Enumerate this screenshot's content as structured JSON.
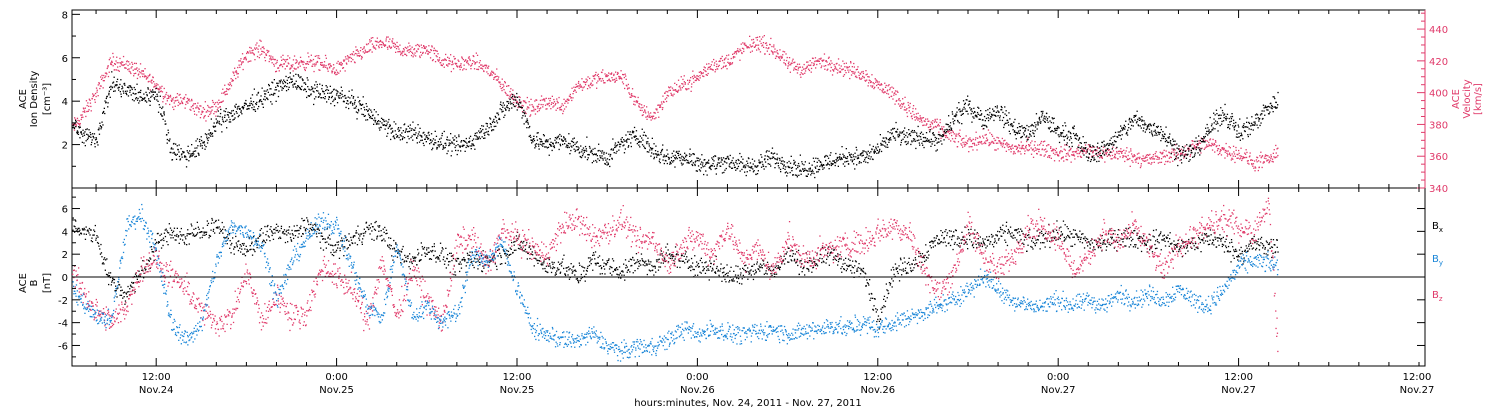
{
  "colors": {
    "black": "#000000",
    "velocity": "#e03a6a",
    "by": "#1a86d8",
    "bz": "#e03a6a"
  },
  "xaxis": {
    "title": "hours:minutes, Nov. 24, 2011 - Nov. 27, 2011",
    "range_hours": [
      6.4,
      96.4
    ],
    "ticks": [
      {
        "h": 12,
        "time": "12:00",
        "date": "Nov.24"
      },
      {
        "h": 24,
        "time": "0:00",
        "date": "Nov.25"
      },
      {
        "h": 36,
        "time": "12:00",
        "date": "Nov.25"
      },
      {
        "h": 48,
        "time": "0:00",
        "date": "Nov.26"
      },
      {
        "h": 60,
        "time": "12:00",
        "date": "Nov.26"
      },
      {
        "h": 72,
        "time": "0:00",
        "date": "Nov.27"
      },
      {
        "h": 84,
        "time": "12:00",
        "date": "Nov.27"
      }
    ]
  },
  "chart_data": [
    {
      "type": "scatter",
      "panel": "top",
      "ylabel_line1": "ACE",
      "ylabel_line2": "Ion Density",
      "ylabel_units": "[cm⁻³]",
      "ylim": [
        0,
        8.2
      ],
      "yticks": [
        2,
        4,
        6,
        8
      ],
      "y2label_line1": "ACE",
      "y2label_line2": "Velocity",
      "y2label_units": "[km/s]",
      "y2lim": [
        340,
        452
      ],
      "y2ticks": [
        340,
        360,
        380,
        400,
        420,
        440
      ],
      "series": [
        {
          "key": "density",
          "x": [
            6.4,
            7.0,
            8.0,
            9.0,
            10.0,
            11.0,
            12.0,
            13.0,
            14.0,
            15.0,
            16.0,
            17.0,
            18.0,
            19.0,
            20.0,
            21.0,
            22.0,
            23.0,
            24.0,
            25.0,
            26.0,
            27.0,
            28.0,
            29.0,
            30.0,
            31.0,
            32.0,
            33.0,
            34.0,
            35.0,
            36.0,
            37.0,
            38.0,
            39.0,
            40.0,
            41.0,
            42.0,
            43.0,
            44.0,
            45.0,
            46.0,
            47.0,
            48.0,
            49.0,
            50.0,
            51.0,
            52.0,
            53.0,
            54.0,
            55.0,
            56.0,
            57.0,
            58.0,
            59.0,
            60.0,
            61.0,
            62.0,
            63.0,
            64.0,
            65.0,
            66.0,
            67.0,
            68.0,
            69.0,
            70.0,
            71.0,
            72.0,
            73.0,
            74.0,
            75.0,
            76.0,
            77.0,
            78.0,
            79.0,
            80.0,
            81.0,
            82.0,
            83.0,
            84.0,
            85.0,
            86.0,
            86.6
          ],
          "y": [
            3.2,
            2.4,
            2.3,
            4.8,
            4.5,
            4.2,
            4.4,
            1.8,
            1.5,
            2.0,
            3.0,
            3.5,
            3.8,
            4.2,
            4.6,
            5.0,
            4.6,
            4.4,
            4.3,
            4.0,
            3.5,
            3.0,
            2.5,
            2.6,
            2.3,
            2.1,
            1.9,
            2.2,
            2.8,
            3.6,
            4.2,
            2.3,
            2.0,
            2.2,
            1.9,
            1.6,
            1.4,
            2.1,
            2.5,
            1.8,
            1.4,
            1.5,
            1.2,
            1.1,
            1.3,
            1.0,
            1.1,
            1.4,
            1.1,
            0.9,
            1.1,
            1.3,
            1.5,
            1.4,
            1.8,
            2.5,
            2.3,
            2.4,
            2.1,
            3.2,
            3.8,
            3.2,
            3.6,
            2.8,
            2.5,
            3.3,
            2.6,
            2.4,
            1.6,
            1.8,
            2.4,
            3.2,
            2.8,
            2.6,
            1.6,
            1.7,
            2.7,
            3.5,
            2.6,
            3.0,
            3.8,
            4.0
          ],
          "spread": 0.45
        },
        {
          "key": "velocity",
          "x": [
            6.4,
            7.0,
            8.0,
            9.0,
            10.0,
            11.0,
            12.0,
            13.0,
            14.0,
            15.0,
            16.0,
            17.0,
            18.0,
            19.0,
            20.0,
            21.0,
            22.0,
            23.0,
            24.0,
            25.0,
            26.0,
            27.0,
            28.0,
            29.0,
            30.0,
            31.0,
            32.0,
            33.0,
            34.0,
            35.0,
            36.0,
            37.0,
            38.0,
            39.0,
            40.0,
            41.0,
            42.0,
            43.0,
            44.0,
            45.0,
            46.0,
            47.0,
            48.0,
            49.0,
            50.0,
            51.0,
            52.0,
            53.0,
            54.0,
            55.0,
            56.0,
            57.0,
            58.0,
            59.0,
            60.0,
            61.0,
            62.0,
            63.0,
            64.0,
            65.0,
            66.0,
            67.0,
            68.0,
            69.0,
            70.0,
            71.0,
            72.0,
            73.0,
            74.0,
            75.0,
            76.0,
            77.0,
            78.0,
            79.0,
            80.0,
            81.0,
            82.0,
            83.0,
            84.0,
            85.0,
            86.0,
            86.6
          ],
          "y": [
            378,
            385,
            400,
            420,
            418,
            412,
            405,
            395,
            395,
            388,
            392,
            408,
            425,
            428,
            418,
            418,
            420,
            418,
            415,
            422,
            428,
            432,
            428,
            426,
            428,
            420,
            418,
            420,
            415,
            405,
            395,
            390,
            395,
            392,
            405,
            408,
            410,
            410,
            392,
            385,
            400,
            405,
            410,
            418,
            420,
            428,
            432,
            428,
            418,
            415,
            420,
            418,
            415,
            412,
            405,
            400,
            390,
            382,
            378,
            372,
            368,
            372,
            368,
            365,
            366,
            365,
            362,
            362,
            364,
            362,
            362,
            360,
            358,
            360,
            362,
            366,
            368,
            364,
            362,
            356,
            358,
            362
          ],
          "spread": 5
        }
      ]
    },
    {
      "type": "scatter",
      "panel": "bottom",
      "ylabel_line1": "ACE",
      "ylabel_line2": "B",
      "ylabel_units": "[nT]",
      "ylim": [
        -7.8,
        7.8
      ],
      "yticks": [
        -6,
        -4,
        -2,
        0,
        2,
        4,
        6
      ],
      "series": [
        {
          "key": "bx",
          "label": "B",
          "sub": "x",
          "x": [
            6.4,
            7.0,
            8.0,
            9.0,
            10.0,
            11.0,
            12.0,
            13.0,
            14.0,
            15.0,
            16.0,
            17.0,
            18.0,
            19.0,
            20.0,
            21.0,
            22.0,
            23.0,
            24.0,
            25.0,
            26.0,
            27.0,
            28.0,
            29.0,
            30.0,
            31.0,
            32.0,
            33.0,
            34.0,
            35.0,
            36.0,
            37.0,
            38.0,
            39.0,
            40.0,
            41.0,
            42.0,
            43.0,
            44.0,
            45.0,
            46.0,
            47.0,
            48.0,
            49.0,
            50.0,
            51.0,
            52.0,
            53.0,
            54.0,
            55.0,
            56.0,
            57.0,
            58.0,
            59.0,
            60.0,
            61.0,
            62.0,
            63.0,
            64.0,
            65.0,
            66.0,
            67.0,
            68.0,
            69.0,
            70.0,
            71.0,
            72.0,
            73.0,
            74.0,
            75.0,
            76.0,
            77.0,
            78.0,
            79.0,
            80.0,
            81.0,
            82.0,
            83.0,
            84.0,
            85.0,
            86.0,
            86.6
          ],
          "y": [
            4.5,
            4.2,
            3.5,
            -0.5,
            -1.5,
            0.5,
            3.0,
            4.0,
            3.5,
            4.2,
            4.5,
            3.0,
            2.5,
            3.5,
            4.2,
            3.5,
            4.8,
            3.5,
            2.5,
            3.5,
            4.2,
            4.0,
            2.0,
            1.5,
            2.5,
            2.0,
            1.0,
            1.5,
            1.5,
            2.0,
            3.0,
            2.0,
            1.0,
            1.0,
            0.0,
            1.5,
            1.0,
            0.5,
            1.5,
            1.0,
            2.0,
            1.5,
            1.0,
            1.0,
            0.0,
            0.5,
            1.0,
            0.5,
            2.0,
            1.0,
            1.5,
            2.0,
            1.0,
            0.5,
            -3.5,
            0.5,
            1.0,
            2.0,
            3.5,
            3.5,
            3.5,
            3.0,
            3.5,
            4.0,
            3.0,
            3.5,
            4.0,
            3.5,
            3.0,
            3.0,
            3.5,
            3.5,
            3.0,
            3.5,
            2.5,
            3.0,
            3.5,
            3.0,
            2.0,
            3.0,
            2.5,
            3.0
          ],
          "spread": 0.9
        },
        {
          "key": "by",
          "label": "B",
          "sub": "y",
          "x": [
            6.4,
            7.0,
            8.0,
            9.0,
            10.0,
            11.0,
            12.0,
            13.0,
            14.0,
            15.0,
            16.0,
            17.0,
            18.0,
            19.0,
            20.0,
            21.0,
            22.0,
            23.0,
            24.0,
            25.0,
            26.0,
            27.0,
            28.0,
            29.0,
            30.0,
            31.0,
            32.0,
            33.0,
            34.0,
            35.0,
            36.0,
            37.0,
            38.0,
            39.0,
            40.0,
            41.0,
            42.0,
            43.0,
            44.0,
            45.0,
            46.0,
            47.0,
            48.0,
            49.0,
            50.0,
            51.0,
            52.0,
            53.0,
            54.0,
            55.0,
            56.0,
            57.0,
            58.0,
            59.0,
            60.0,
            61.0,
            62.0,
            63.0,
            64.0,
            65.0,
            66.0,
            67.0,
            68.0,
            69.0,
            70.0,
            71.0,
            72.0,
            73.0,
            74.0,
            75.0,
            76.0,
            77.0,
            78.0,
            79.0,
            80.0,
            81.0,
            82.0,
            83.0,
            84.0,
            85.0,
            86.0,
            86.6
          ],
          "y": [
            -1.0,
            -2.0,
            -3.5,
            -3.8,
            4.5,
            5.5,
            2.0,
            -4.0,
            -5.5,
            -4.0,
            1.5,
            4.5,
            4.0,
            3.0,
            -2.0,
            1.5,
            3.5,
            5.0,
            4.5,
            1.0,
            -2.5,
            -3.5,
            3.0,
            -3.5,
            -2.5,
            -4.0,
            -3.0,
            2.0,
            1.5,
            3.0,
            -1.0,
            -4.5,
            -5.0,
            -5.5,
            -5.5,
            -5.0,
            -6.0,
            -6.5,
            -6.0,
            -6.0,
            -5.5,
            -4.5,
            -5.0,
            -4.5,
            -4.8,
            -5.0,
            -4.8,
            -4.5,
            -5.0,
            -4.8,
            -4.5,
            -4.2,
            -4.5,
            -4.0,
            -4.5,
            -4.0,
            -3.5,
            -3.0,
            -2.5,
            -2.0,
            -1.0,
            0.0,
            -1.0,
            -2.0,
            -2.5,
            -2.5,
            -2.0,
            -2.5,
            -2.0,
            -2.5,
            -1.5,
            -2.0,
            -1.5,
            -2.0,
            -1.0,
            -2.0,
            -2.5,
            -1.0,
            1.0,
            1.5,
            1.2,
            1.0
          ],
          "spread": 0.8
        },
        {
          "key": "bz",
          "label": "B",
          "sub": "z",
          "x": [
            6.4,
            7.0,
            8.0,
            9.0,
            10.0,
            11.0,
            12.0,
            13.0,
            14.0,
            15.0,
            16.0,
            17.0,
            18.0,
            19.0,
            20.0,
            21.0,
            22.0,
            23.0,
            24.0,
            25.0,
            26.0,
            27.0,
            28.0,
            29.0,
            30.0,
            31.0,
            32.0,
            33.0,
            34.0,
            35.0,
            36.0,
            37.0,
            38.0,
            39.0,
            40.0,
            41.0,
            42.0,
            43.0,
            44.0,
            45.0,
            46.0,
            47.0,
            48.0,
            49.0,
            50.0,
            51.0,
            52.0,
            53.0,
            54.0,
            55.0,
            56.0,
            57.0,
            58.0,
            59.0,
            60.0,
            61.0,
            62.0,
            63.0,
            64.0,
            65.0,
            66.0,
            67.0,
            68.0,
            69.0,
            70.0,
            71.0,
            72.0,
            73.0,
            74.0,
            75.0,
            76.0,
            77.0,
            78.0,
            79.0,
            80.0,
            81.0,
            82.0,
            83.0,
            84.0,
            85.0,
            86.0,
            86.6
          ],
          "y": [
            0.5,
            -1.0,
            -3.0,
            -4.0,
            -2.5,
            1.0,
            1.5,
            0.0,
            -1.0,
            -3.0,
            -4.0,
            -3.5,
            0.5,
            -4.0,
            -1.5,
            -3.5,
            -3.0,
            1.0,
            0.0,
            -1.0,
            -4.0,
            1.5,
            -3.5,
            1.0,
            -2.0,
            -4.0,
            3.0,
            3.5,
            1.0,
            4.0,
            3.5,
            2.5,
            2.0,
            4.5,
            5.0,
            3.5,
            4.0,
            5.0,
            3.0,
            3.5,
            1.0,
            3.0,
            3.5,
            2.0,
            4.5,
            1.5,
            2.5,
            0.5,
            3.5,
            1.5,
            2.0,
            2.5,
            3.0,
            3.0,
            4.0,
            4.5,
            4.0,
            1.0,
            -1.5,
            0.5,
            4.5,
            2.0,
            0.5,
            2.0,
            4.5,
            4.5,
            3.5,
            0.5,
            2.0,
            4.0,
            3.0,
            4.5,
            2.5,
            0.5,
            3.0,
            3.5,
            4.5,
            5.0,
            4.5,
            4.0,
            6.5,
            -6.5
          ],
          "spread": 1.1
        }
      ]
    }
  ]
}
